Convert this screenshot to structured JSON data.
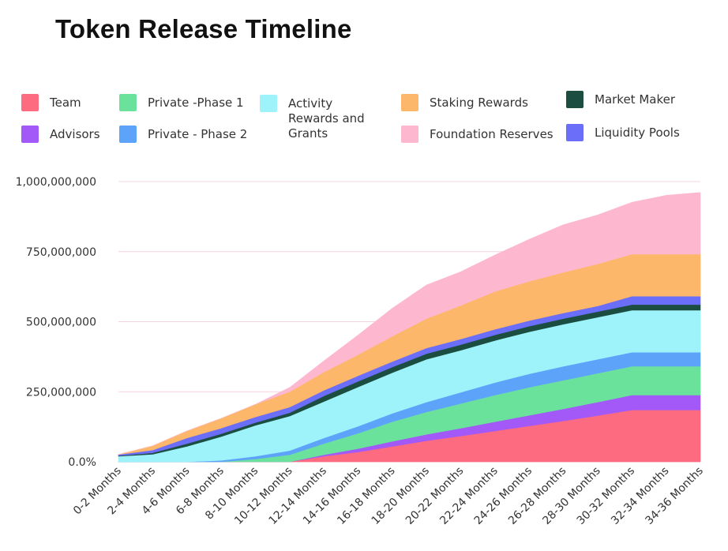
{
  "title": "Token Release Timeline",
  "chart_data": {
    "type": "area",
    "stacked": true,
    "title": "Token Release Timeline",
    "xlabel": "",
    "ylabel": "",
    "ylim": [
      0,
      1000000000
    ],
    "y_ticks": [
      "0.0%",
      "250,000,000",
      "500,000,000",
      "750,000,000",
      "1,000,000,000"
    ],
    "y_tick_values": [
      0,
      250000000,
      500000000,
      750000000,
      1000000000
    ],
    "grid": true,
    "legend": "top",
    "categories": [
      "0-2 Months",
      "2-4 Months",
      "4-6 Months",
      "6-8 Months",
      "8-10 Months",
      "10-12 Months",
      "12-14 Months",
      "14-16 Months",
      "16-18 Months",
      "18-20 Months",
      "20-22 Months",
      "22-24 Months",
      "24-26 Months",
      "26-28 Months",
      "28-30 Months",
      "30-32 Months",
      "32-34 Months",
      "34-36 Months"
    ],
    "series": [
      {
        "name": "Team",
        "color": "#fd6b80",
        "values": [
          0,
          0,
          0,
          0,
          0,
          0,
          20000000,
          35000000,
          55000000,
          75000000,
          92000000,
          110000000,
          128000000,
          146000000,
          165000000,
          185000000,
          185000000,
          185000000
        ]
      },
      {
        "name": "Advisors",
        "color": "#a259f7",
        "values": [
          0,
          0,
          0,
          0,
          0,
          0,
          5000000,
          12000000,
          18000000,
          23000000,
          28000000,
          33000000,
          38000000,
          43000000,
          48000000,
          53000000,
          53000000,
          53000000
        ]
      },
      {
        "name": "Private -Phase 1",
        "color": "#6be29c",
        "values": [
          0,
          0,
          0,
          0,
          10000000,
          25000000,
          40000000,
          55000000,
          70000000,
          80000000,
          88000000,
          95000000,
          100000000,
          102000000,
          103000000,
          103000000,
          103000000,
          103000000
        ]
      },
      {
        "name": "Private - Phase 2",
        "color": "#5ea3fa",
        "values": [
          0,
          0,
          0,
          5000000,
          10000000,
          15000000,
          20000000,
          25000000,
          30000000,
          35000000,
          40000000,
          45000000,
          48000000,
          50000000,
          50000000,
          50000000,
          50000000,
          50000000
        ]
      },
      {
        "name": "Activity Rewards and Grants",
        "color": "#9ef3fb",
        "values": [
          20000000,
          27000000,
          55000000,
          85000000,
          110000000,
          123000000,
          130000000,
          140000000,
          145000000,
          153000000,
          150000000,
          150000000,
          150000000,
          150000000,
          150000000,
          150000000,
          150000000,
          150000000
        ]
      },
      {
        "name": "Market Maker",
        "color": "#1b4d40",
        "values": [
          2000000,
          5000000,
          10000000,
          10000000,
          10000000,
          12000000,
          20000000,
          20000000,
          20000000,
          20000000,
          20000000,
          20000000,
          20000000,
          20000000,
          20000000,
          20000000,
          20000000,
          20000000
        ]
      },
      {
        "name": "Liquidity Pools",
        "color": "#6b6ef8",
        "values": [
          4000000,
          10000000,
          20000000,
          20000000,
          20000000,
          20000000,
          20000000,
          20000000,
          20000000,
          20000000,
          20000000,
          20000000,
          20000000,
          20000000,
          20000000,
          30000000,
          30000000,
          30000000
        ]
      },
      {
        "name": "Staking Rewards",
        "color": "#fdb76b",
        "values": [
          0,
          15000000,
          25000000,
          35000000,
          45000000,
          55000000,
          65000000,
          75000000,
          90000000,
          105000000,
          120000000,
          135000000,
          140000000,
          145000000,
          150000000,
          150000000,
          150000000,
          150000000
        ]
      },
      {
        "name": "Foundation Reserves",
        "color": "#fdb8cf",
        "values": [
          0,
          0,
          0,
          0,
          0,
          15000000,
          40000000,
          70000000,
          100000000,
          120000000,
          120000000,
          130000000,
          150000000,
          170000000,
          175000000,
          185000000,
          210000000,
          220000000
        ]
      }
    ]
  },
  "legend": {
    "items": [
      {
        "label": "Team",
        "color": "#fd6b80"
      },
      {
        "label": "Advisors",
        "color": "#a259f7"
      },
      {
        "label": "Private -Phase 1",
        "color": "#6be29c"
      },
      {
        "label": "Private - Phase 2",
        "color": "#5ea3fa"
      },
      {
        "label": "Activity Rewards and Grants",
        "color": "#9ef3fb"
      },
      {
        "label": "Staking Rewards",
        "color": "#fdb76b"
      },
      {
        "label": "Foundation Reserves",
        "color": "#fdb8cf"
      },
      {
        "label": "Market Maker",
        "color": "#1b4d40"
      },
      {
        "label": "Liquidity Pools",
        "color": "#6b6ef8"
      }
    ]
  }
}
